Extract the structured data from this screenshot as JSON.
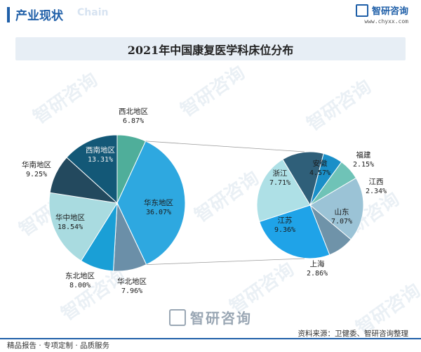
{
  "header": {
    "title": "产业现状",
    "faint_text": "Chain"
  },
  "brand": {
    "name": "智研咨询",
    "url": "www.chyxx.com"
  },
  "chart_data": {
    "type": "pie",
    "title": "2021年中国康复医学科床位分布",
    "main_pie": {
      "slices": [
        {
          "label": "西北地区",
          "value": 6.87,
          "display": "6.87%",
          "color": "#4fae9a"
        },
        {
          "label": "华东地区",
          "value": 36.07,
          "display": "36.07%",
          "color": "#2ea8e0"
        },
        {
          "label": "华北地区",
          "value": 7.96,
          "display": "7.96%",
          "color": "#6b8fa8"
        },
        {
          "label": "东北地区",
          "value": 8.0,
          "display": "8.00%",
          "color": "#1a9fd6"
        },
        {
          "label": "华中地区",
          "value": 18.54,
          "display": "18.54%",
          "color": "#a9dbe0"
        },
        {
          "label": "华南地区",
          "value": 9.25,
          "display": "9.25%",
          "color": "#23495e"
        },
        {
          "label": "西南地区",
          "value": 13.31,
          "display": "13.31%",
          "color": "#135877"
        }
      ]
    },
    "breakdown_pie": {
      "of": "华东地区",
      "slices": [
        {
          "label": "安徽",
          "value": 4.57,
          "display": "4.57%",
          "color": "#2f5f79"
        },
        {
          "label": "福建",
          "value": 2.15,
          "display": "2.15%",
          "color": "#1a8fc8"
        },
        {
          "label": "江西",
          "value": 2.34,
          "display": "2.34%",
          "color": "#6fc3b7"
        },
        {
          "label": "山东",
          "value": 7.07,
          "display": "7.07%",
          "color": "#9bc3d6"
        },
        {
          "label": "上海",
          "value": 2.86,
          "display": "2.86%",
          "color": "#6f93a9"
        },
        {
          "label": "江苏",
          "value": 9.36,
          "display": "9.36%",
          "color": "#1fa3e8"
        },
        {
          "label": "浙江",
          "value": 7.71,
          "display": "7.71%",
          "color": "#aee0e6"
        }
      ]
    }
  },
  "footer": {
    "brand_name": "智研咨询",
    "source": "资料来源：卫健委、智研咨询整理",
    "tagline": "精品报告 · 专项定制 · 品质服务"
  },
  "watermark": {
    "text": "智研咨询"
  }
}
